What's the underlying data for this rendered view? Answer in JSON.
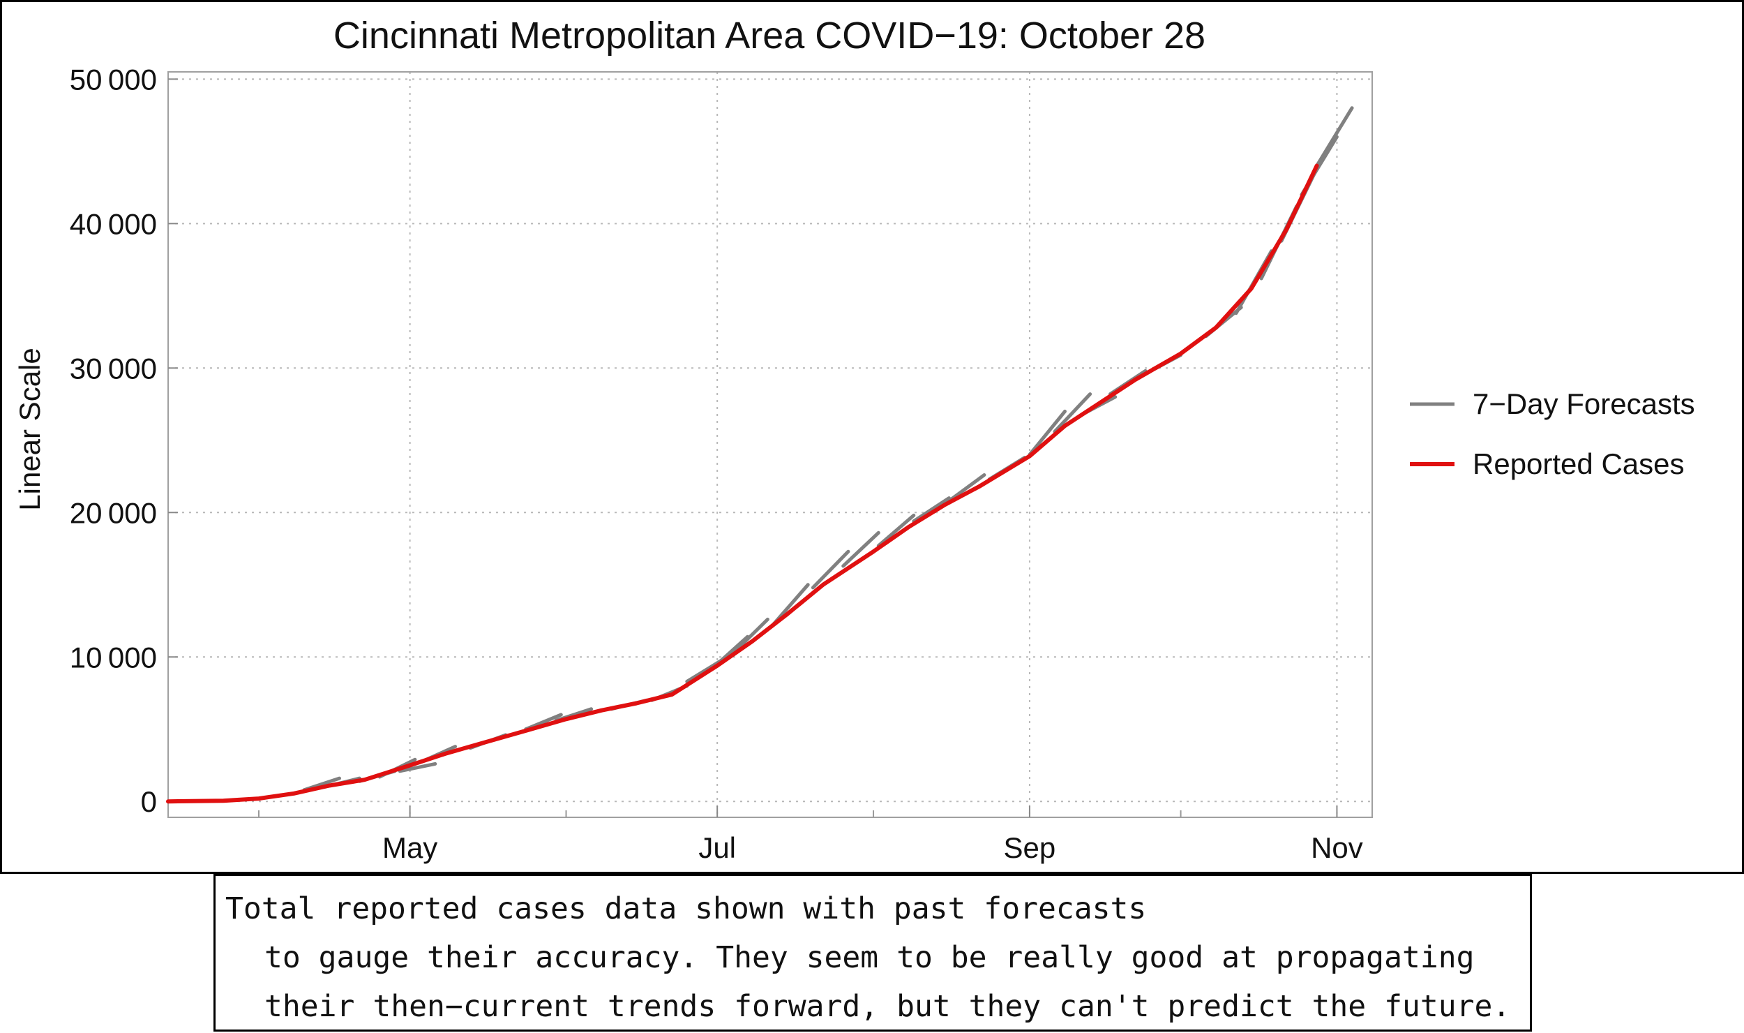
{
  "chart_data": {
    "type": "line",
    "title": "Cincinnati Metropolitan Area COVID−19: October 28",
    "ylabel": "Linear Scale",
    "xlabel": "",
    "y_ticks": [
      "0",
      "10 000",
      "20 000",
      "30 000",
      "40 000",
      "50 000"
    ],
    "y_tick_values": [
      0,
      10000,
      20000,
      30000,
      40000,
      50000
    ],
    "x_ticks": [
      "May",
      "Jul",
      "Sep",
      "Nov"
    ],
    "x_tick_dates": [
      "2020-05-01",
      "2020-07-01",
      "2020-09-01",
      "2020-11-01"
    ],
    "xlim": [
      "2020-03-14",
      "2020-11-08"
    ],
    "ylim": [
      -1100,
      50500
    ],
    "grid": true,
    "legend_position": "right",
    "series": [
      {
        "name": "Reported Cases",
        "color": "#e01010",
        "points": [
          [
            "2020-03-14",
            0
          ],
          [
            "2020-03-25",
            50
          ],
          [
            "2020-04-01",
            200
          ],
          [
            "2020-04-08",
            550
          ],
          [
            "2020-04-15",
            1100
          ],
          [
            "2020-04-22",
            1500
          ],
          [
            "2020-05-01",
            2500
          ],
          [
            "2020-05-08",
            3300
          ],
          [
            "2020-05-15",
            4000
          ],
          [
            "2020-05-22",
            4700
          ],
          [
            "2020-06-01",
            5700
          ],
          [
            "2020-06-08",
            6300
          ],
          [
            "2020-06-15",
            6800
          ],
          [
            "2020-06-22",
            7400
          ],
          [
            "2020-07-01",
            9400
          ],
          [
            "2020-07-08",
            11100
          ],
          [
            "2020-07-15",
            13000
          ],
          [
            "2020-07-22",
            15000
          ],
          [
            "2020-08-01",
            17300
          ],
          [
            "2020-08-08",
            19000
          ],
          [
            "2020-08-15",
            20500
          ],
          [
            "2020-08-22",
            21800
          ],
          [
            "2020-09-01",
            23900
          ],
          [
            "2020-09-08",
            26000
          ],
          [
            "2020-09-15",
            27600
          ],
          [
            "2020-09-22",
            29200
          ],
          [
            "2020-10-01",
            31000
          ],
          [
            "2020-10-08",
            32800
          ],
          [
            "2020-10-15",
            35500
          ],
          [
            "2020-10-22",
            39600
          ],
          [
            "2020-10-28",
            44000
          ]
        ]
      },
      {
        "name": "7-Day Forecasts",
        "color": "#808080",
        "segments": [
          [
            [
              "2020-04-10",
              800
            ],
            [
              "2020-04-17",
              1600
            ]
          ],
          [
            [
              "2020-04-14",
              1000
            ],
            [
              "2020-04-21",
              1600
            ]
          ],
          [
            [
              "2020-04-21",
              1400
            ],
            [
              "2020-04-28",
              2100
            ]
          ],
          [
            [
              "2020-04-25",
              1700
            ],
            [
              "2020-05-02",
              2900
            ]
          ],
          [
            [
              "2020-04-29",
              2100
            ],
            [
              "2020-05-06",
              2600
            ]
          ],
          [
            [
              "2020-05-03",
              2700
            ],
            [
              "2020-05-10",
              3800
            ]
          ],
          [
            [
              "2020-05-13",
              3700
            ],
            [
              "2020-05-20",
              4600
            ]
          ],
          [
            [
              "2020-05-24",
              5000
            ],
            [
              "2020-05-31",
              6000
            ]
          ],
          [
            [
              "2020-05-30",
              5600
            ],
            [
              "2020-06-06",
              6400
            ]
          ],
          [
            [
              "2020-06-10",
              6400
            ],
            [
              "2020-06-17",
              7000
            ]
          ],
          [
            [
              "2020-06-18",
              7000
            ],
            [
              "2020-06-25",
              8000
            ]
          ],
          [
            [
              "2020-06-25",
              8300
            ],
            [
              "2020-07-02",
              9800
            ]
          ],
          [
            [
              "2020-06-30",
              9200
            ],
            [
              "2020-07-07",
              11400
            ]
          ],
          [
            [
              "2020-07-04",
              10200
            ],
            [
              "2020-07-11",
              12600
            ]
          ],
          [
            [
              "2020-07-12",
              12200
            ],
            [
              "2020-07-19",
              15000
            ]
          ],
          [
            [
              "2020-07-20",
              14800
            ],
            [
              "2020-07-27",
              17300
            ]
          ],
          [
            [
              "2020-07-26",
              16300
            ],
            [
              "2020-08-02",
              18600
            ]
          ],
          [
            [
              "2020-08-02",
              17700
            ],
            [
              "2020-08-09",
              19800
            ]
          ],
          [
            [
              "2020-08-09",
              19400
            ],
            [
              "2020-08-16",
              21000
            ]
          ],
          [
            [
              "2020-08-16",
              20800
            ],
            [
              "2020-08-23",
              22600
            ]
          ],
          [
            [
              "2020-08-24",
              22300
            ],
            [
              "2020-08-31",
              23800
            ]
          ],
          [
            [
              "2020-09-01",
              24000
            ],
            [
              "2020-09-08",
              27000
            ]
          ],
          [
            [
              "2020-09-06",
              25600
            ],
            [
              "2020-09-13",
              28200
            ]
          ],
          [
            [
              "2020-09-11",
              26700
            ],
            [
              "2020-09-18",
              28000
            ]
          ],
          [
            [
              "2020-09-17",
              28200
            ],
            [
              "2020-09-24",
              29800
            ]
          ],
          [
            [
              "2020-09-24",
              29600
            ],
            [
              "2020-10-01",
              30900
            ]
          ],
          [
            [
              "2020-10-01",
              31000
            ],
            [
              "2020-10-08",
              32800
            ]
          ],
          [
            [
              "2020-10-06",
              32200
            ],
            [
              "2020-10-13",
              34200
            ]
          ],
          [
            [
              "2020-10-12",
              33800
            ],
            [
              "2020-10-19",
              38100
            ]
          ],
          [
            [
              "2020-10-17",
              36200
            ],
            [
              "2020-10-24",
              41200
            ]
          ],
          [
            [
              "2020-10-21",
              38800
            ],
            [
              "2020-10-28",
              43800
            ]
          ],
          [
            [
              "2020-10-25",
              42000
            ],
            [
              "2020-11-01",
              46000
            ]
          ],
          [
            [
              "2020-10-28",
              44000
            ],
            [
              "2020-11-04",
              48000
            ]
          ]
        ]
      }
    ]
  },
  "legend": {
    "items": [
      {
        "label": "7−Day Forecasts",
        "color": "#808080"
      },
      {
        "label": "Reported Cases",
        "color": "#e01010"
      }
    ]
  },
  "caption": {
    "line1": "Total reported cases data shown with past forecasts",
    "line2": "to gauge their accuracy. They seem to be really good at propagating",
    "line3": "their then−current trends forward, but they can't predict the future."
  }
}
